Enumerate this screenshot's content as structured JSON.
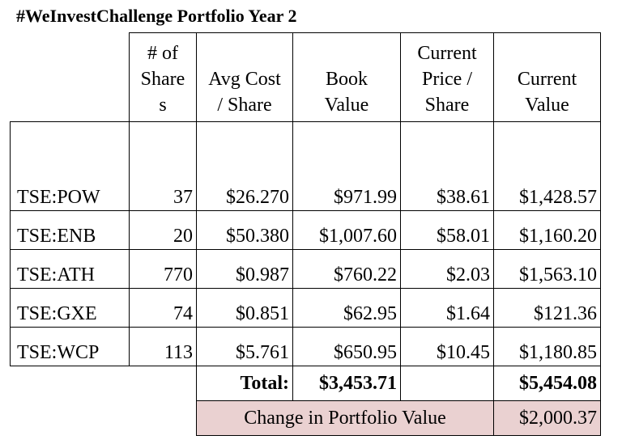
{
  "title": "#WeInvestChallenge Portfolio Year 2",
  "headers": {
    "shares": [
      "# of",
      "Share",
      "s"
    ],
    "avg_cost": [
      "Avg Cost",
      "/ Share"
    ],
    "book_value": [
      "Book",
      "Value"
    ],
    "current_price": [
      "Current",
      "Price /",
      "Share"
    ],
    "current_value": [
      "Current",
      "Value"
    ]
  },
  "rows": [
    {
      "ticker": "TSE:POW",
      "shares": "37",
      "avg_cost": "$26.270",
      "book_value": "$971.99",
      "current_price": "$38.61",
      "current_value": "$1,428.57"
    },
    {
      "ticker": "TSE:ENB",
      "shares": "20",
      "avg_cost": "$50.380",
      "book_value": "$1,007.60",
      "current_price": "$58.01",
      "current_value": "$1,160.20"
    },
    {
      "ticker": "TSE:ATH",
      "shares": "770",
      "avg_cost": "$0.987",
      "book_value": "$760.22",
      "current_price": "$2.03",
      "current_value": "$1,563.10"
    },
    {
      "ticker": "TSE:GXE",
      "shares": "74",
      "avg_cost": "$0.851",
      "book_value": "$62.95",
      "current_price": "$1.64",
      "current_value": "$121.36"
    },
    {
      "ticker": "TSE:WCP",
      "shares": "113",
      "avg_cost": "$5.761",
      "book_value": "$650.95",
      "current_price": "$10.45",
      "current_value": "$1,180.85"
    }
  ],
  "total": {
    "label": "Total:",
    "book_value": "$3,453.71",
    "current_value": "$5,454.08"
  },
  "change": {
    "label": "Change in Portfolio Value",
    "value": "$2,000.37"
  },
  "colors": {
    "change_row_bg": "#ead1d1"
  }
}
